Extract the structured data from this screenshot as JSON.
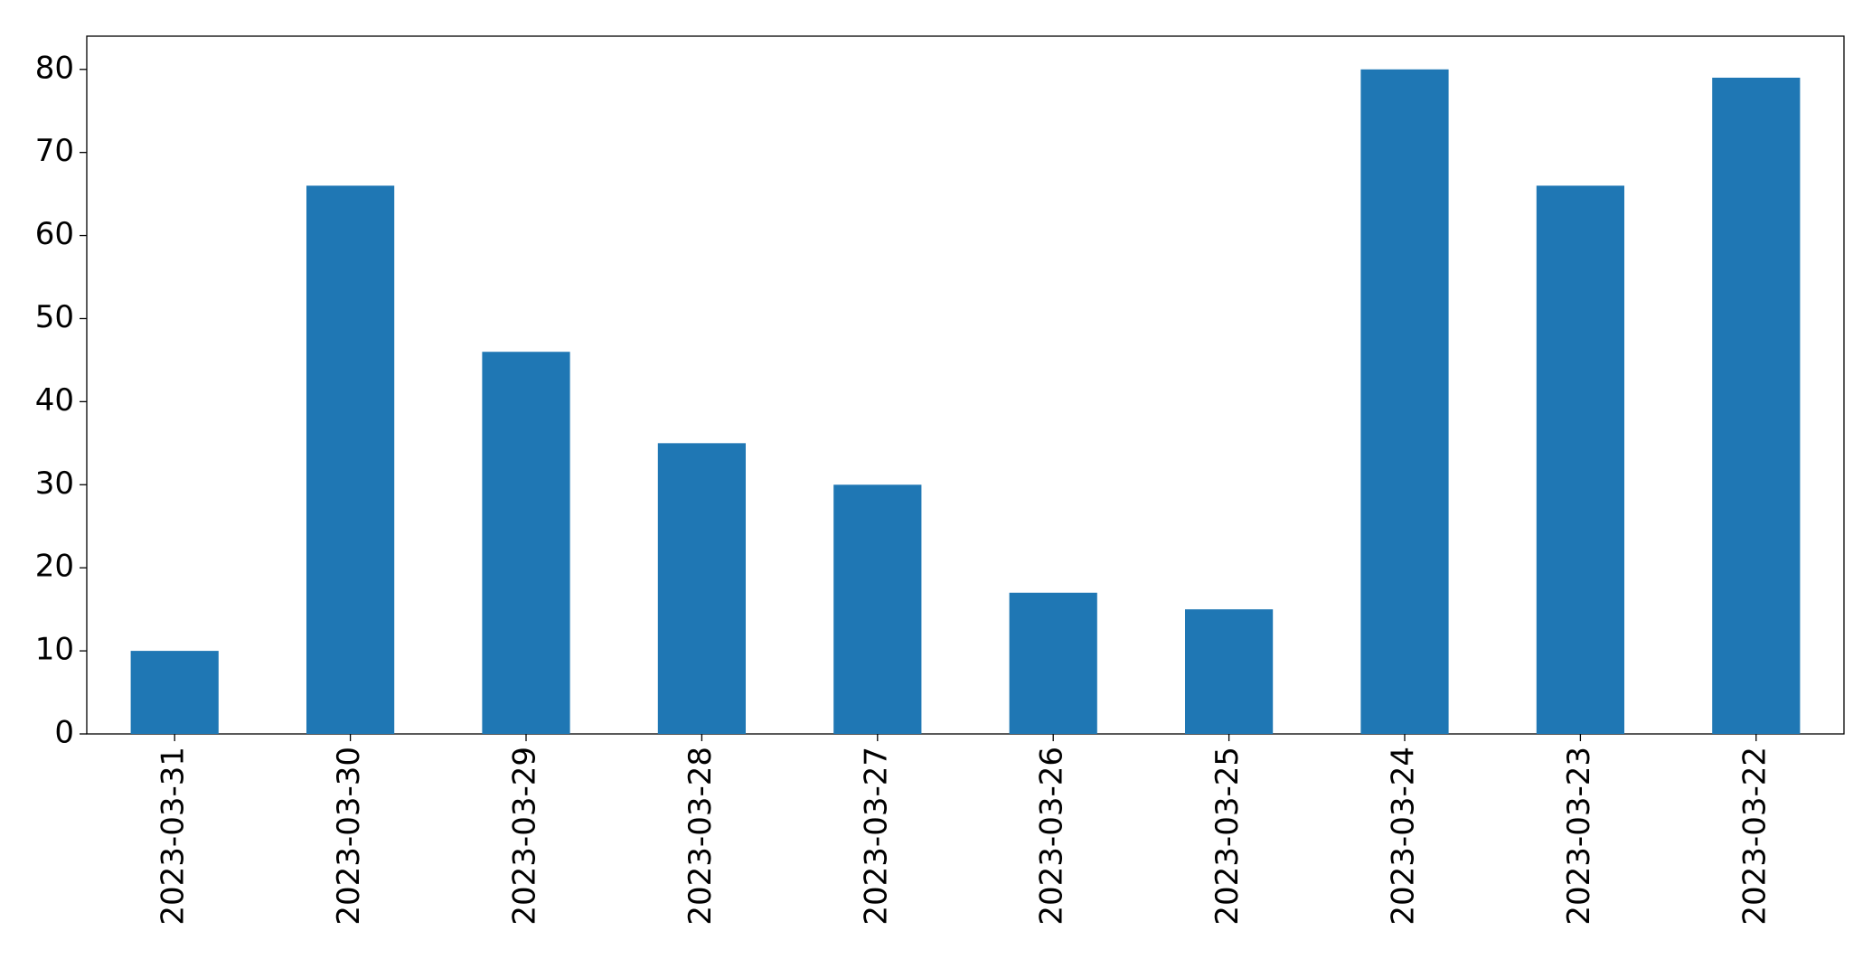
{
  "chart_data": {
    "type": "bar",
    "categories": [
      "2023-03-31",
      "2023-03-30",
      "2023-03-29",
      "2023-03-28",
      "2023-03-27",
      "2023-03-26",
      "2023-03-25",
      "2023-03-24",
      "2023-03-23",
      "2023-03-22"
    ],
    "values": [
      10,
      66,
      46,
      35,
      30,
      17,
      15,
      80,
      66,
      79
    ],
    "color": "#1f77b4",
    "ylim": [
      0,
      84
    ],
    "yticks": [
      0,
      10,
      20,
      30,
      40,
      50,
      60,
      70,
      80
    ],
    "grid": false
  }
}
